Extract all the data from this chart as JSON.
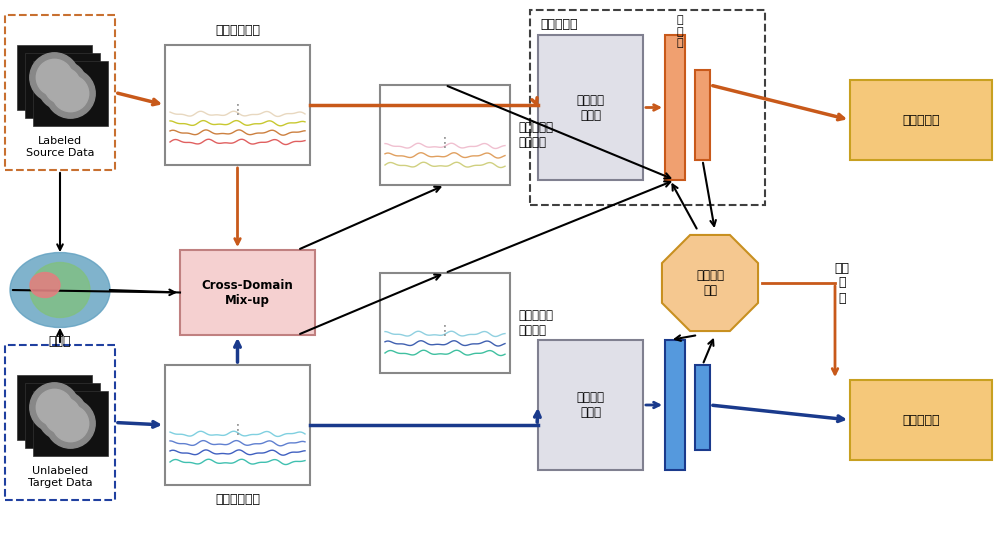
{
  "title": "",
  "bg_color": "#ffffff",
  "orange_color": "#C8591A",
  "dark_orange": "#C8591A",
  "light_orange": "#F0A070",
  "blue_color": "#1A3A8C",
  "light_blue": "#4477CC",
  "box_orange_fill": "#F5C87A",
  "box_orange_border": "#C8A020",
  "box_blue_fill": "#D0D8F0",
  "box_pink_fill": "#F5D0D0",
  "box_pink_border": "#C08080",
  "box_peach_fill": "#F5C890",
  "box_peach_border": "#C89020",
  "dashed_orange_border": "#C87030",
  "dashed_blue_border": "#2040A0",
  "gray_box_fill": "#E0E0E8",
  "gray_box_border": "#808090",
  "source_label": "Labeled\nSource Data",
  "target_label": "Unlabeled\nTarget Data",
  "brain_atlas_label": "脑图谱",
  "time_series_top_label": "时间序列特征",
  "time_series_bottom_label": "时间序列特征",
  "cross_domain_label": "Cross-Domain\nMix-up",
  "aug_top_label": "增广的时间\n序列特征",
  "aug_bottom_label": "增广的时间\n序列特征",
  "feature_extractor_label": "特征提取器",
  "conv_layer_label": "卷\n积\n层",
  "stgcn_top_label": "时空图卷\n积模块",
  "stgcn_bottom_label": "时空图卷\n积模块",
  "align_label": "特征对齐\n模块",
  "category_label": "类别判别器",
  "domain_label": "域别判别器",
  "gradient_label": "梯度\n反\n转"
}
